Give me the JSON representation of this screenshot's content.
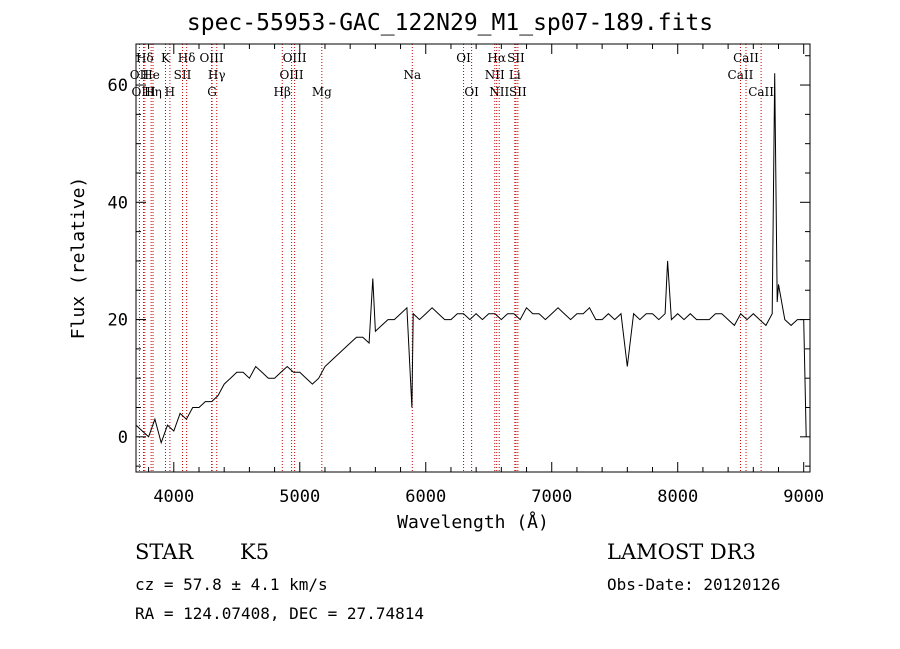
{
  "chart_data": {
    "type": "line",
    "title": "spec-55953-GAC_122N29_M1_sp07-189.fits",
    "xlabel": "Wavelength (Å)",
    "ylabel": "Flux (relative)",
    "xlim": [
      3700,
      9050
    ],
    "ylim": [
      -6,
      67
    ],
    "x_ticks": [
      4000,
      5000,
      6000,
      7000,
      8000,
      9000
    ],
    "y_ticks": [
      0,
      20,
      40,
      60
    ],
    "grid": false,
    "series": [
      {
        "x": [
          3700,
          3750,
          3800,
          3850,
          3900,
          3950,
          4000,
          4050,
          4100,
          4150,
          4200,
          4250,
          4300,
          4350,
          4400,
          4450,
          4500,
          4550,
          4600,
          4650,
          4700,
          4750,
          4800,
          4850,
          4900,
          4950,
          5000,
          5050,
          5100,
          5150,
          5200,
          5250,
          5300,
          5350,
          5400,
          5450,
          5500,
          5550,
          5580,
          5600,
          5650,
          5700,
          5750,
          5800,
          5850,
          5890,
          5900,
          5950,
          6000,
          6050,
          6100,
          6150,
          6200,
          6250,
          6300,
          6350,
          6400,
          6450,
          6500,
          6550,
          6600,
          6650,
          6700,
          6750,
          6800,
          6850,
          6900,
          6950,
          7000,
          7050,
          7100,
          7150,
          7200,
          7250,
          7300,
          7350,
          7400,
          7450,
          7500,
          7550,
          7600,
          7650,
          7700,
          7750,
          7800,
          7850,
          7900,
          7920,
          7950,
          8000,
          8050,
          8100,
          8150,
          8200,
          8250,
          8300,
          8350,
          8400,
          8450,
          8500,
          8550,
          8600,
          8650,
          8700,
          8750,
          8770,
          8790,
          8800,
          8850,
          8900,
          8950,
          9000,
          9020
        ],
        "values": [
          2,
          1,
          0,
          3,
          -1,
          2,
          1,
          4,
          3,
          5,
          5,
          6,
          6,
          7,
          9,
          10,
          11,
          11,
          10,
          12,
          11,
          10,
          10,
          11,
          12,
          11,
          11,
          10,
          9,
          10,
          12,
          13,
          14,
          15,
          16,
          17,
          17,
          16,
          27,
          18,
          19,
          20,
          20,
          21,
          22,
          5,
          21,
          20,
          21,
          22,
          21,
          20,
          20,
          21,
          21,
          20,
          21,
          20,
          21,
          21,
          20,
          21,
          21,
          20,
          22,
          21,
          21,
          20,
          21,
          22,
          21,
          20,
          21,
          21,
          22,
          20,
          20,
          21,
          20,
          21,
          12,
          21,
          20,
          21,
          21,
          20,
          21,
          30,
          20,
          21,
          20,
          21,
          20,
          20,
          20,
          21,
          21,
          20,
          19,
          21,
          20,
          21,
          20,
          19,
          21,
          62,
          23,
          26,
          20,
          19,
          20,
          20,
          0
        ]
      }
    ],
    "line_markers": [
      {
        "label": "Hδ",
        "x": 3770,
        "row": 1
      },
      {
        "label": "OII",
        "x": 3727,
        "row": 2
      },
      {
        "label": "OIII",
        "x": 3760,
        "row": 3
      },
      {
        "label": "He",
        "x": 3820,
        "row": 2
      },
      {
        "label": "Hη",
        "x": 3835,
        "row": 3
      },
      {
        "label": "K",
        "x": 3934,
        "row": 1
      },
      {
        "label": "H",
        "x": 3969,
        "row": 3
      },
      {
        "label": "SII",
        "x": 4069,
        "row": 2
      },
      {
        "label": "Hδ",
        "x": 4102,
        "row": 1
      },
      {
        "label": "OIII",
        "x": 4300,
        "row": 1
      },
      {
        "label": "Hγ",
        "x": 4341,
        "row": 2
      },
      {
        "label": "G",
        "x": 4304,
        "row": 3
      },
      {
        "label": "OIII",
        "x": 4959,
        "row": 1
      },
      {
        "label": "OIII",
        "x": 4935,
        "row": 2
      },
      {
        "label": "Hβ",
        "x": 4861,
        "row": 3
      },
      {
        "label": "Mg",
        "x": 5175,
        "row": 3
      },
      {
        "label": "Na",
        "x": 5893,
        "row": 2
      },
      {
        "label": "OI",
        "x": 6300,
        "row": 1
      },
      {
        "label": "OI",
        "x": 6364,
        "row": 3
      },
      {
        "label": "Hα",
        "x": 6563,
        "row": 1
      },
      {
        "label": "NII",
        "x": 6548,
        "row": 2
      },
      {
        "label": "Li",
        "x": 6707,
        "row": 2
      },
      {
        "label": "NII",
        "x": 6583,
        "row": 3
      },
      {
        "label": "SII",
        "x": 6716,
        "row": 1
      },
      {
        "label": "SII",
        "x": 6731,
        "row": 3
      },
      {
        "label": "CaII",
        "x": 8542,
        "row": 1
      },
      {
        "label": "CaII",
        "x": 8498,
        "row": 2
      },
      {
        "label": "CaII",
        "x": 8662,
        "row": 3
      }
    ],
    "line_marker_color": "#cc0000"
  },
  "info": {
    "class": "STAR",
    "subclass": "K5",
    "survey": "LAMOST DR3",
    "cz": "cz = 57.8 ± 4.1 km/s",
    "obs_date": "Obs-Date: 20120126",
    "coords": "RA = 124.07408, DEC =  27.74814"
  }
}
